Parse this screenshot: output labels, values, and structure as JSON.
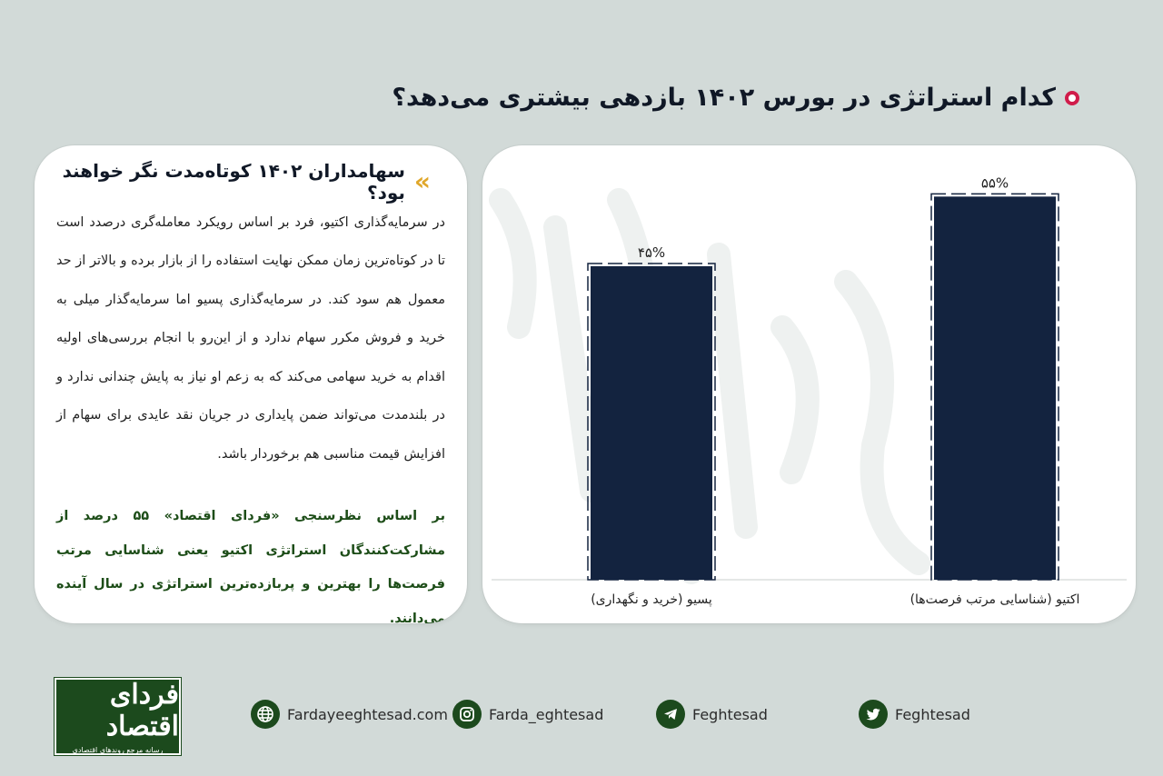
{
  "page": {
    "title": "کدام استراتژی در بورس ۱۴۰۲ بازدهی بیشتری می‌دهد؟"
  },
  "text_box": {
    "title": "سهامداران ۱۴۰۲ کوتاه‌مدت نگر خواهند بود؟",
    "body": "در سرمایه‌گذاری اکتیو، فرد بر اساس رویکرد معامله‌گری درصدد است تا در کوتاه‌ترین زمان ممکن نهایت استفاده را از بازار برده و بالاتر از حد معمول هم سود کند. در سرمایه‌گذاری پسیو اما سرمایه‌گذار میلی به خرید و فروش مکرر سهام ندارد و از این‌رو با انجام بررسی‌های اولیه اقدام به خرید سهامی می‌کند که به زعم او نیاز به پایش چندانی ندارد و در بلندمدت می‌تواند ضمن پایداری در جریان نقد عایدی برای سهام از افزایش قیمت مناسبی هم برخوردار باشد.",
    "highlight": "بر اساس نظرسنجی «فردای اقتصاد» ۵۵ درصد از مشارکت‌کنندگان استراتژی اکتیو یعنی شناسایی مرتب فرصت‌ها را بهترین و پربازده‌ترین استراتژی در سال آینده می‌دانند."
  },
  "chart_data": {
    "type": "bar",
    "categories": [
      "اکتیو (شناسایی مرتب فرصت‌ها)",
      "پسیو (خرید و نگهداری)"
    ],
    "values": [
      55,
      45
    ],
    "data_labels": [
      "۵۵%",
      "۴۵%"
    ],
    "ylim": [
      0,
      60
    ],
    "title": "",
    "xlabel": "",
    "ylabel": "",
    "grid": false,
    "legend": "none",
    "bar_color": "#13233f"
  },
  "logo": {
    "main": "فردای اقتصاد",
    "sub": "رسانه مرجع روندهای اقتصادی"
  },
  "footer": {
    "links": [
      {
        "icon": "globe-icon",
        "label": "Fardayeeghtesad.com"
      },
      {
        "icon": "instagram-icon",
        "label": "Farda_eghtesad"
      },
      {
        "icon": "telegram-icon",
        "label": "Feghtesad"
      },
      {
        "icon": "twitter-icon",
        "label": "Feghtesad"
      }
    ]
  },
  "colors": {
    "accent": "#d01c4a",
    "brand_green": "#1c4a1d",
    "highlight_text": "#1d4d18",
    "chevron": "#e0a72a"
  }
}
